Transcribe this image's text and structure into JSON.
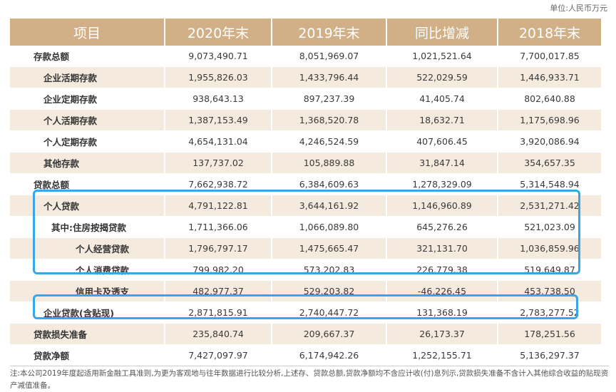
{
  "unit": "单位:人民币万元",
  "headers": [
    "项目",
    "2020年末",
    "2019年末",
    "同比增减",
    "2018年末"
  ],
  "rows": [
    {
      "label": "存款总额",
      "values": [
        "9,073,490.71",
        "8,051,969.07",
        "1,021,521.64",
        "7,700,017.85"
      ]
    },
    {
      "label": "企业活期存款",
      "values": [
        "1,955,826.03",
        "1,433,796.44",
        "522,029.59",
        "1,446,933.71"
      ]
    },
    {
      "label": "企业定期存款",
      "values": [
        "938,643.13",
        "897,237.39",
        "41,405.74",
        "802,640.88"
      ]
    },
    {
      "label": "个人活期存款",
      "values": [
        "1,387,153.49",
        "1,368,520.78",
        "18,632.71",
        "1,175,698.96"
      ]
    },
    {
      "label": "个人定期存款",
      "values": [
        "4,654,131.04",
        "4,246,524.59",
        "407,606.45",
        "3,920,086.94"
      ]
    },
    {
      "label": "其他存款",
      "values": [
        "137,737.02",
        "105,889.88",
        "31,847.14",
        "354,657.35"
      ]
    },
    {
      "label": "贷款总额",
      "values": [
        "7,662,938.72",
        "6,384,609.63",
        "1,278,329.09",
        "5,314,548.94"
      ]
    },
    {
      "label": "个人贷款",
      "values": [
        "4,791,122.81",
        "3,644,161.92",
        "1,146,960.89",
        "2,531,271.42"
      ]
    },
    {
      "label": "其中:住房按揭贷款",
      "values": [
        "1,711,366.06",
        "1,066,089.80",
        "645,276.26",
        "521,023.09"
      ]
    },
    {
      "label": "个人经营贷款",
      "values": [
        "1,796,797.17",
        "1,475,665.47",
        "321,131.70",
        "1,036,859.96"
      ]
    },
    {
      "label": "个人消费贷款",
      "values": [
        "799,982.20",
        "573,202.83",
        "226,779.38",
        "519,649.87"
      ]
    },
    {
      "label": "信用卡及透支",
      "values": [
        "482,977.37",
        "529,203.82",
        "-46,226.45",
        "453,738.50"
      ]
    },
    {
      "label": "企业贷款(含贴现)",
      "values": [
        "2,871,815.91",
        "2,740,447.72",
        "131,368.19",
        "2,783,277.52"
      ]
    },
    {
      "label": "贷款损失准备",
      "values": [
        "235,840.74",
        "209,667.37",
        "26,173.37",
        "178,251.56"
      ]
    },
    {
      "label": "贷款净额",
      "values": [
        "7,427,097.97",
        "6,174,942.26",
        "1,252,155.71",
        "5,136,297.37"
      ]
    }
  ],
  "note": "注:本公司2019年度起适用新金融工具准则,为更为客观地与往年数据进行比较分析,上述存、贷款总额,贷款净额均不含应计收(付)息列示,贷款损失准备不含计入其他综合收益的贴现资产减值准备。",
  "highlight_color": "#3aa6e6",
  "header_color": "#d2b087",
  "stripe_color": "#f4ebde"
}
